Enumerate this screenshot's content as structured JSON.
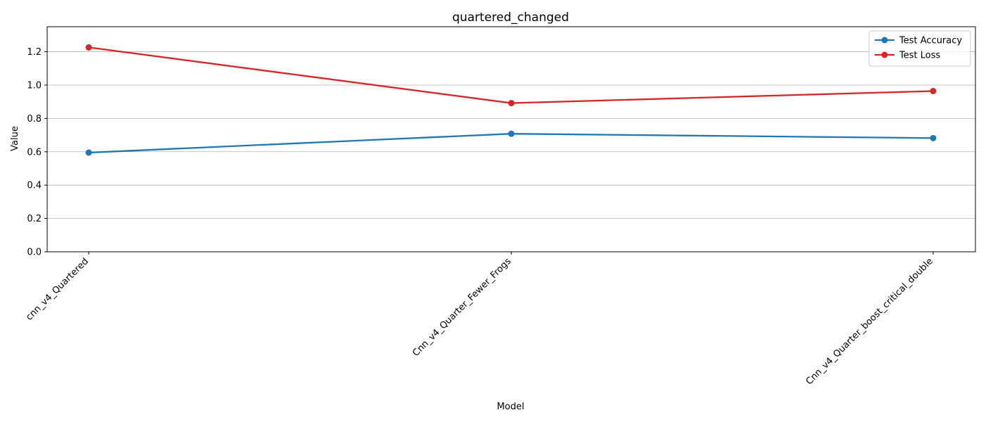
{
  "chart_data": {
    "type": "line",
    "title": "quartered_changed",
    "xlabel": "Model",
    "ylabel": "Value",
    "categories": [
      "cnn_v4_Quartered",
      "Cnn_v4_Quarter_Fewer_Frogs",
      "Cnn_v4_Quarter_boost_critical_double"
    ],
    "series": [
      {
        "name": "Test Accuracy",
        "color": "#1f77b4",
        "values": [
          0.595,
          0.708,
          0.682
        ]
      },
      {
        "name": "Test Loss",
        "color": "#d62728",
        "values": [
          1.226,
          0.892,
          0.964
        ]
      }
    ],
    "ylim": [
      0,
      1.35
    ],
    "yticks": [
      0.0,
      0.2,
      0.4,
      0.6,
      0.8,
      1.0,
      1.2
    ],
    "ytick_labels": [
      "0.0",
      "0.2",
      "0.4",
      "0.6",
      "0.8",
      "1.0",
      "1.2"
    ],
    "grid": "horizontal",
    "legend": "top-right"
  }
}
